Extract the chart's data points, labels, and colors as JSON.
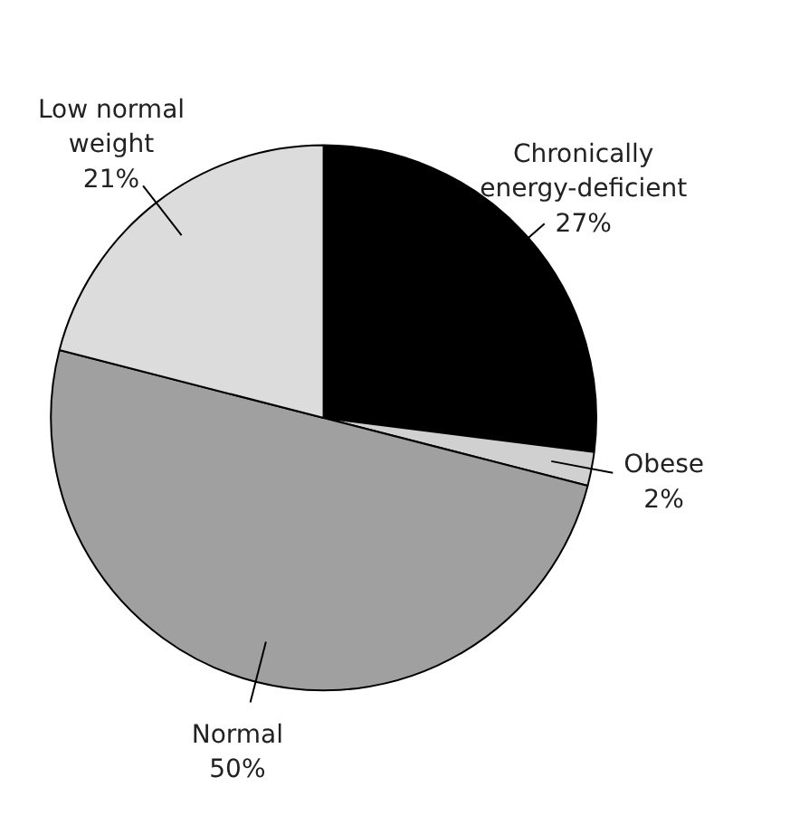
{
  "chart_data": {
    "type": "pie",
    "categories": [
      "Chronically energy-deficient",
      "Obese",
      "Normal",
      "Low normal weight"
    ],
    "values": [
      27,
      2,
      50,
      21
    ],
    "value_labels": [
      "27%",
      "2%",
      "50%",
      "21%"
    ],
    "colors": [
      "#000000",
      "#d0d0d0",
      "#a0a0a0",
      "#dcdcdc"
    ]
  }
}
